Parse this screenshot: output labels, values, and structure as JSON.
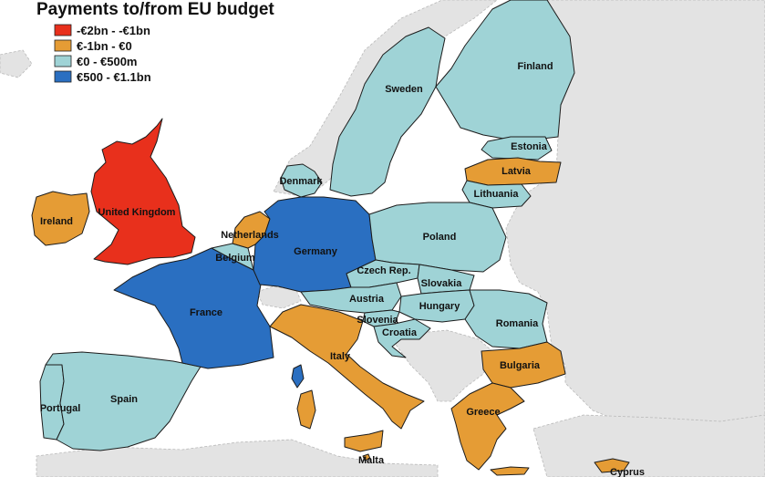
{
  "map": {
    "title": "Payments to/from EU budget",
    "colors": {
      "net_big_payer": "#e8301c",
      "net_payer": "#e59c35",
      "net_receiver": "#9fd3d6",
      "net_big_receiver": "#2a6fc1",
      "nonmember": "#e3e3e3"
    }
  },
  "legend": {
    "items": [
      {
        "label": "-€2bn - -€1bn",
        "category": "net_big_payer"
      },
      {
        "label": "€-1bn - €0",
        "category": "net_payer"
      },
      {
        "label": "€0 - €500m",
        "category": "net_receiver"
      },
      {
        "label": "€500 - €1.1bn",
        "category": "net_big_receiver"
      }
    ]
  },
  "countries": [
    {
      "name": "United Kingdom",
      "category": "net_big_payer"
    },
    {
      "name": "Ireland",
      "category": "net_payer"
    },
    {
      "name": "Portugal",
      "category": "net_receiver"
    },
    {
      "name": "Spain",
      "category": "net_receiver"
    },
    {
      "name": "France",
      "category": "net_big_receiver"
    },
    {
      "name": "Belgium",
      "category": "net_receiver"
    },
    {
      "name": "Netherlands",
      "category": "net_payer"
    },
    {
      "name": "Germany",
      "category": "net_big_receiver"
    },
    {
      "name": "Denmark",
      "category": "net_receiver"
    },
    {
      "name": "Sweden",
      "category": "net_receiver"
    },
    {
      "name": "Finland",
      "category": "net_receiver"
    },
    {
      "name": "Estonia",
      "category": "net_receiver"
    },
    {
      "name": "Latvia",
      "category": "net_payer"
    },
    {
      "name": "Lithuania",
      "category": "net_receiver"
    },
    {
      "name": "Poland",
      "category": "net_receiver"
    },
    {
      "name": "Czech Rep.",
      "category": "net_receiver"
    },
    {
      "name": "Slovakia",
      "category": "net_receiver"
    },
    {
      "name": "Austria",
      "category": "net_receiver"
    },
    {
      "name": "Hungary",
      "category": "net_receiver"
    },
    {
      "name": "Slovenia",
      "category": "net_receiver"
    },
    {
      "name": "Croatia",
      "category": "net_receiver"
    },
    {
      "name": "Romania",
      "category": "net_receiver"
    },
    {
      "name": "Bulgaria",
      "category": "net_payer"
    },
    {
      "name": "Italy",
      "category": "net_payer"
    },
    {
      "name": "Greece",
      "category": "net_payer"
    },
    {
      "name": "Malta",
      "category": "net_payer"
    },
    {
      "name": "Cyprus",
      "category": "net_payer"
    }
  ]
}
